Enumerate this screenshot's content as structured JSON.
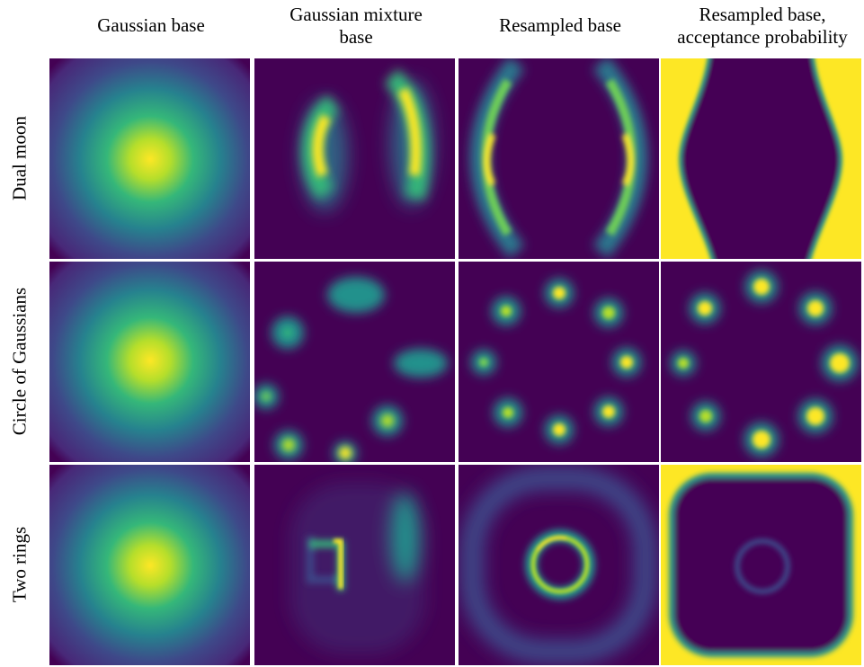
{
  "columns": [
    "Gaussian base",
    "Gaussian mixture base",
    "Resampled base",
    "Resampled base, acceptance probability"
  ],
  "column_lines": [
    [
      "Gaussian base"
    ],
    [
      "Gaussian mixture",
      "base"
    ],
    [
      "Resampled base"
    ],
    [
      "Resampled base,",
      "acceptance probability"
    ]
  ],
  "rows": [
    "Dual moon",
    "Circle of Gaussians",
    "Two rings"
  ],
  "colors": {
    "background": "#440154",
    "mid": "#21918c",
    "high": "#fde725"
  }
}
